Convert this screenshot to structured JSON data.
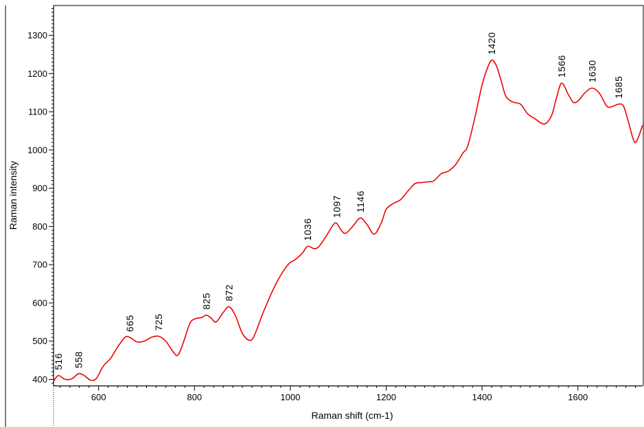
{
  "chart_data": {
    "type": "line",
    "xlabel": "Raman shift (cm-1)",
    "ylabel": "Raman intensity",
    "xlim": [
      506,
      1735
    ],
    "ylim": [
      383,
      1378
    ],
    "x_ticks": [
      600,
      800,
      1000,
      1200,
      1400,
      1600
    ],
    "y_ticks": [
      400,
      500,
      600,
      700,
      800,
      900,
      1000,
      1100,
      1200,
      1300
    ],
    "grid": false,
    "line_color": "#ee0000",
    "series": [
      {
        "x": [
          506,
          516,
          530,
          545,
          558,
          570,
          583,
          595,
          610,
          625,
          640,
          655,
          665,
          680,
          695,
          710,
          725,
          740,
          755,
          765,
          775,
          790,
          800,
          815,
          825,
          835,
          845,
          860,
          872,
          885,
          900,
          915,
          925,
          945,
          970,
          995,
          1010,
          1025,
          1036,
          1050,
          1060,
          1075,
          1090,
          1097,
          1105,
          1115,
          1130,
          1146,
          1160,
          1175,
          1190,
          1200,
          1215,
          1230,
          1245,
          1260,
          1275,
          1290,
          1300,
          1315,
          1330,
          1345,
          1360,
          1370,
          1385,
          1400,
          1410,
          1420,
          1430,
          1440,
          1450,
          1465,
          1480,
          1495,
          1510,
          1530,
          1545,
          1555,
          1566,
          1580,
          1590,
          1600,
          1615,
          1630,
          1645,
          1660,
          1670,
          1685,
          1695,
          1705,
          1715,
          1722,
          1735
        ],
        "y": [
          395,
          410,
          400,
          402,
          415,
          410,
          398,
          402,
          435,
          455,
          485,
          510,
          510,
          498,
          500,
          510,
          513,
          500,
          473,
          463,
          490,
          545,
          558,
          562,
          568,
          560,
          550,
          575,
          590,
          568,
          520,
          502,
          515,
          580,
          650,
          700,
          713,
          730,
          748,
          742,
          748,
          775,
          805,
          808,
          792,
          782,
          800,
          822,
          805,
          780,
          810,
          845,
          860,
          870,
          892,
          912,
          915,
          917,
          920,
          938,
          945,
          962,
          992,
          1010,
          1085,
          1170,
          1210,
          1235,
          1220,
          1180,
          1140,
          1125,
          1120,
          1095,
          1082,
          1068,
          1090,
          1135,
          1175,
          1145,
          1125,
          1128,
          1150,
          1162,
          1148,
          1115,
          1113,
          1120,
          1115,
          1075,
          1030,
          1022,
          1065
        ]
      }
    ],
    "peak_labels": [
      {
        "text": "516",
        "x": 516,
        "y": 410
      },
      {
        "text": "558",
        "x": 558,
        "y": 415
      },
      {
        "text": "665",
        "x": 665,
        "y": 510
      },
      {
        "text": "725",
        "x": 725,
        "y": 513
      },
      {
        "text": "825",
        "x": 825,
        "y": 568
      },
      {
        "text": "872",
        "x": 872,
        "y": 590
      },
      {
        "text": "1036",
        "x": 1036,
        "y": 748
      },
      {
        "text": "1097",
        "x": 1097,
        "y": 808
      },
      {
        "text": "1146",
        "x": 1146,
        "y": 822
      },
      {
        "text": "1420",
        "x": 1420,
        "y": 1235
      },
      {
        "text": "1566",
        "x": 1566,
        "y": 1175
      },
      {
        "text": "1630",
        "x": 1630,
        "y": 1162
      },
      {
        "text": "1685",
        "x": 1685,
        "y": 1120
      }
    ]
  }
}
